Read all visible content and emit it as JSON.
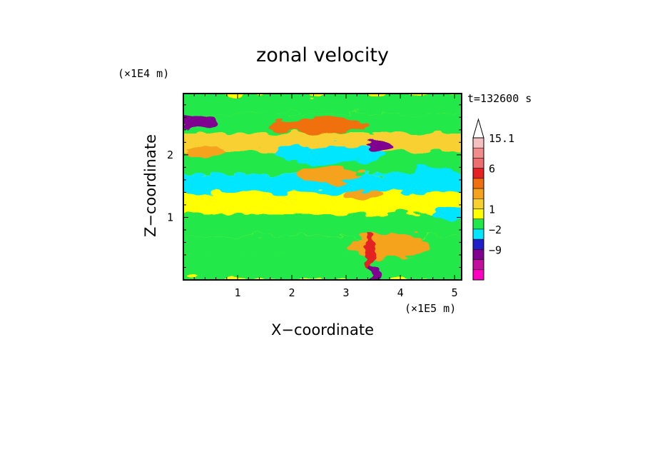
{
  "chart_data": {
    "type": "heatmap",
    "title": "zonal velocity",
    "xlabel": "X−coordinate",
    "ylabel": "Z−coordinate",
    "x_unit": "(×1E5 m)",
    "y_unit": "(×1E4 m)",
    "time_label": "t=132600 s",
    "xlim": [
      0,
      5.13
    ],
    "ylim": [
      0,
      2.98
    ],
    "x_ticks": [
      "1",
      "2",
      "3",
      "4",
      "5"
    ],
    "y_ticks": [
      "1",
      "2"
    ],
    "colorbar": {
      "labels": [
        "15.1",
        "6",
        "1",
        "−2",
        "−9"
      ],
      "levels_desc": [
        {
          "color": "#f4c0c0",
          "value": 15.1
        },
        {
          "color": "#f08c8c"
        },
        {
          "color": "#ec6e6e"
        },
        {
          "color": "#e42222",
          "value": 6
        },
        {
          "color": "#f07010"
        },
        {
          "color": "#f5a21e"
        },
        {
          "color": "#f8d030"
        },
        {
          "color": "#ffff00",
          "value": 1
        },
        {
          "color": "#20e84a"
        },
        {
          "color": "#00e6ff",
          "value": -2
        },
        {
          "color": "#2020c8"
        },
        {
          "color": "#800090",
          "value": -9
        },
        {
          "color": "#c0109c"
        },
        {
          "color": "#ff00c0"
        }
      ]
    },
    "field_bands": [
      {
        "z": [
          2.65,
          2.98
        ],
        "value": 0.5
      },
      {
        "z": [
          2.35,
          2.65
        ],
        "value": 0.3
      },
      {
        "z": [
          2.05,
          2.35
        ],
        "value": 1.5
      },
      {
        "z": [
          1.7,
          2.05
        ],
        "value": 0.0
      },
      {
        "z": [
          1.4,
          1.7
        ],
        "value": -1.0
      },
      {
        "z": [
          1.05,
          1.4
        ],
        "value": 1.2
      },
      {
        "z": [
          0.7,
          1.05
        ],
        "value": 0.5
      },
      {
        "z": [
          0.4,
          0.7
        ],
        "value": 0.4
      },
      {
        "z": [
          0.0,
          0.4
        ],
        "value": 0.8
      }
    ],
    "features": [
      {
        "x": 0.2,
        "z": 2.55,
        "rx": 0.45,
        "rz": 0.12,
        "value": -6
      },
      {
        "x": 2.5,
        "z": 2.47,
        "rx": 0.9,
        "rz": 0.12,
        "value": 4
      },
      {
        "x": 2.7,
        "z": 2.02,
        "rx": 1.0,
        "rz": 0.16,
        "value": -1.5
      },
      {
        "x": 3.6,
        "z": 2.15,
        "rx": 0.25,
        "rz": 0.06,
        "value": -6
      },
      {
        "x": 0.4,
        "z": 2.05,
        "rx": 0.35,
        "rz": 0.09,
        "value": 3
      },
      {
        "x": 0.6,
        "z": 1.6,
        "rx": 0.4,
        "rz": 0.1,
        "value": -1.5
      },
      {
        "x": 2.7,
        "z": 1.68,
        "rx": 0.6,
        "rz": 0.12,
        "value": 3
      },
      {
        "x": 3.3,
        "z": 1.35,
        "rx": 0.35,
        "rz": 0.08,
        "value": 3
      },
      {
        "x": 4.6,
        "z": 1.7,
        "rx": 0.45,
        "rz": 0.12,
        "value": -1.5
      },
      {
        "x": 4.9,
        "z": 1.05,
        "rx": 0.28,
        "rz": 0.1,
        "value": -1.5
      },
      {
        "x": 3.8,
        "z": 0.55,
        "rx": 0.75,
        "rz": 0.22,
        "value": 3
      },
      {
        "x": 3.45,
        "z": 0.45,
        "rx": 0.1,
        "rz": 0.3,
        "value": 8
      },
      {
        "x": 3.5,
        "z": 0.1,
        "rx": 0.08,
        "rz": 0.15,
        "value": -6
      }
    ]
  }
}
